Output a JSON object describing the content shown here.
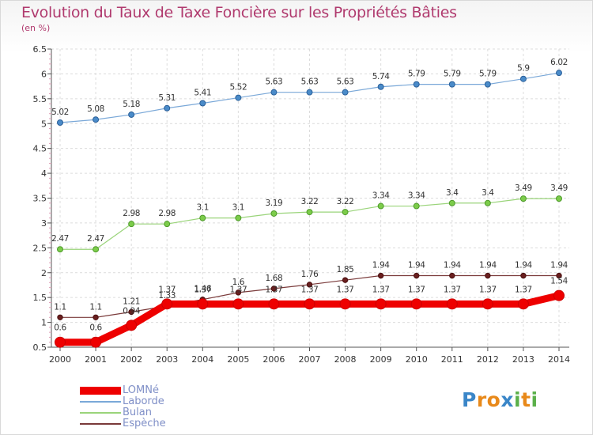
{
  "title": "Evolution du Taux de Taxe Foncière sur les Propriétés Bâties",
  "subtitle": "(en %)",
  "brand": "Proxiti",
  "chart_data": {
    "type": "line",
    "title": "Evolution du Taux de Taxe Foncière sur les Propriétés Bâties",
    "ylabel": "(en %)",
    "xlabel": "",
    "categories": [
      "2000",
      "2001",
      "2002",
      "2003",
      "2004",
      "2005",
      "2006",
      "2007",
      "2008",
      "2009",
      "2010",
      "2011",
      "2012",
      "2013",
      "2014"
    ],
    "ylim": [
      0.5,
      6.5
    ],
    "yticks": [
      "0.5",
      "1",
      "1.5",
      "2",
      "2.5",
      "3",
      "3.5",
      "4",
      "4.5",
      "5",
      "5.5",
      "6",
      "6.5"
    ],
    "legend_position": "bottom-left",
    "series": [
      {
        "name": "LOMNé",
        "color": "#ee0000",
        "values": [
          0.6,
          0.6,
          0.94,
          1.37,
          1.37,
          1.37,
          1.37,
          1.37,
          1.37,
          1.37,
          1.37,
          1.37,
          1.37,
          1.37,
          1.54
        ],
        "labels": [
          "0.6",
          "0.6",
          "0.94",
          "1.37",
          "1.37",
          "1.37",
          "1.37",
          "1.37",
          "1.37",
          "1.37",
          "1.37",
          "1.37",
          "1.37",
          "1.37",
          "1.54"
        ]
      },
      {
        "name": "Laborde",
        "color": "#7aa8d8",
        "values": [
          5.02,
          5.08,
          5.18,
          5.31,
          5.41,
          5.52,
          5.63,
          5.63,
          5.63,
          5.74,
          5.79,
          5.79,
          5.79,
          5.9,
          6.02
        ],
        "labels": [
          "5.02",
          "5.08",
          "5.18",
          "5.31",
          "5.41",
          "5.52",
          "5.63",
          "5.63",
          "5.63",
          "5.74",
          "5.79",
          "5.79",
          "5.79",
          "5.9",
          "6.02"
        ]
      },
      {
        "name": "Bulan",
        "color": "#9ad47a",
        "values": [
          2.47,
          2.47,
          2.98,
          2.98,
          3.1,
          3.1,
          3.19,
          3.22,
          3.22,
          3.34,
          3.34,
          3.4,
          3.4,
          3.49,
          3.49
        ],
        "labels": [
          "2.47",
          "2.47",
          "2.98",
          "2.98",
          "3.1",
          "3.1",
          "3.19",
          "3.22",
          "3.22",
          "3.34",
          "3.34",
          "3.4",
          "3.4",
          "3.49",
          "3.49"
        ]
      },
      {
        "name": "Espèche",
        "color": "#7a3a3a",
        "values": [
          1.1,
          1.1,
          1.21,
          1.33,
          1.46,
          1.6,
          1.68,
          1.76,
          1.85,
          1.94,
          1.94,
          1.94,
          1.94,
          1.94,
          1.94
        ],
        "labels": [
          "1.1",
          "1.1",
          "1.21",
          "1.33",
          "1.46",
          "1.6",
          "1.68",
          "1.76",
          "1.85",
          "1.94",
          "1.94",
          "1.94",
          "1.94",
          "1.94",
          "1.94"
        ]
      }
    ]
  }
}
